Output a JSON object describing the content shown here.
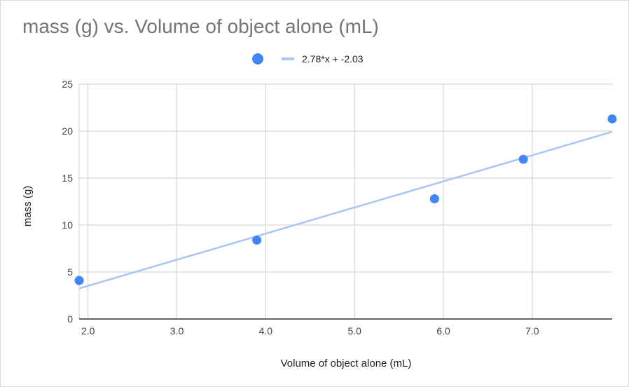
{
  "chart_data": {
    "type": "scatter",
    "title": "mass (g) vs. Volume of object alone (mL)",
    "xlabel": "Volume of object alone (mL)",
    "ylabel": "mass (g)",
    "xlim": [
      1.9,
      7.9
    ],
    "ylim": [
      0,
      25
    ],
    "x_ticks": [
      "2.0",
      "3.0",
      "4.0",
      "5.0",
      "6.0",
      "7.0"
    ],
    "x_tick_values": [
      2,
      3,
      4,
      5,
      6,
      7
    ],
    "y_ticks": [
      "0",
      "5",
      "10",
      "15",
      "20",
      "25"
    ],
    "y_tick_values": [
      0,
      5,
      10,
      15,
      20,
      25
    ],
    "grid": true,
    "legend_position": "top",
    "points": [
      {
        "x": 1.9,
        "y": 4.1
      },
      {
        "x": 3.9,
        "y": 8.4
      },
      {
        "x": 5.9,
        "y": 12.8
      },
      {
        "x": 6.9,
        "y": 17.0
      },
      {
        "x": 7.9,
        "y": 21.3
      }
    ],
    "trendline": {
      "label": "2.78*x + -2.03",
      "slope": 2.78,
      "intercept": -2.03
    },
    "colors": {
      "points": "#4285f4",
      "trendline": "#a9c7f5",
      "grid": "#cccccc",
      "axis": "#333333"
    }
  }
}
